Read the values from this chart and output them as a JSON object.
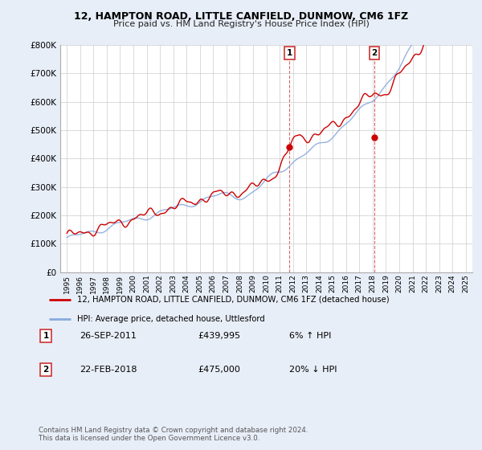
{
  "title": "12, HAMPTON ROAD, LITTLE CANFIELD, DUNMOW, CM6 1FZ",
  "subtitle": "Price paid vs. HM Land Registry's House Price Index (HPI)",
  "xlim_min": 1994.5,
  "xlim_max": 2025.5,
  "ylim": [
    0,
    800000
  ],
  "yticks": [
    0,
    100000,
    200000,
    300000,
    400000,
    500000,
    600000,
    700000,
    800000
  ],
  "ytick_labels": [
    "£0",
    "£100K",
    "£200K",
    "£300K",
    "£400K",
    "£500K",
    "£600K",
    "£700K",
    "£800K"
  ],
  "sale1_x": 2011.74,
  "sale1_y": 439995,
  "sale1_label": "1",
  "sale1_date": "26-SEP-2011",
  "sale1_price": "£439,995",
  "sale1_hpi": "6% ↑ HPI",
  "sale2_x": 2018.14,
  "sale2_y": 475000,
  "sale2_label": "2",
  "sale2_date": "22-FEB-2018",
  "sale2_price": "£475,000",
  "sale2_hpi": "20% ↓ HPI",
  "line1_color": "#cc0000",
  "line2_color": "#88aadd",
  "vline_color": "#cc4444",
  "background_color": "#e8eef8",
  "plot_bg_color": "#ffffff",
  "legend1": "12, HAMPTON ROAD, LITTLE CANFIELD, DUNMOW, CM6 1FZ (detached house)",
  "legend2": "HPI: Average price, detached house, Uttlesford",
  "footer": "Contains HM Land Registry data © Crown copyright and database right 2024.\nThis data is licensed under the Open Government Licence v3.0."
}
